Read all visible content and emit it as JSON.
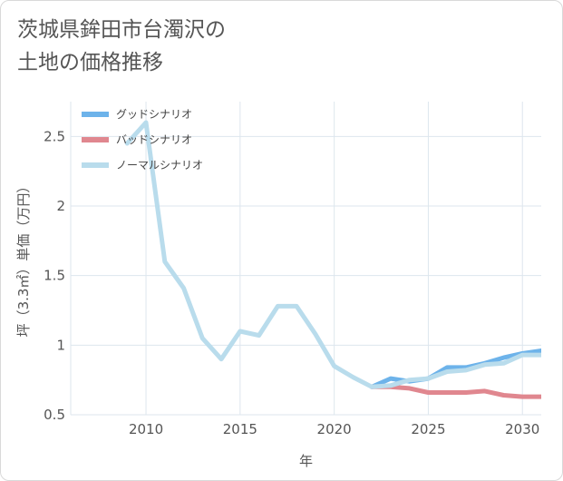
{
  "title_lines": [
    "茨城県鉾田市台濁沢の",
    "土地の価格推移"
  ],
  "chart_data": {
    "type": "line",
    "xlabel": "年",
    "ylabel": "坪（3.3㎡）単価（万円）",
    "xlim": [
      2006,
      2031
    ],
    "ylim": [
      0.5,
      2.75
    ],
    "xticks": [
      2010,
      2015,
      2020,
      2025,
      2030
    ],
    "yticks": [
      0.5,
      1,
      1.5,
      2,
      2.5
    ],
    "ytick_labels": [
      "0.5",
      "1",
      "1.5",
      "2",
      "2.5"
    ],
    "grid": true,
    "legend_position": "top-left",
    "series": [
      {
        "name": "グッドシナリオ",
        "color": "#6db3ea",
        "x": [
          2022,
          2023,
          2024,
          2025,
          2026,
          2027,
          2028,
          2029,
          2030,
          2031
        ],
        "y": [
          0.7,
          0.76,
          0.74,
          0.76,
          0.84,
          0.84,
          0.87,
          0.91,
          0.94,
          0.96
        ]
      },
      {
        "name": "バッドシナリオ",
        "color": "#e0878f",
        "x": [
          2022,
          2023,
          2024,
          2025,
          2026,
          2027,
          2028,
          2029,
          2030,
          2031
        ],
        "y": [
          0.7,
          0.7,
          0.69,
          0.66,
          0.66,
          0.66,
          0.67,
          0.64,
          0.63,
          0.63
        ]
      },
      {
        "name": "ノーマルシナリオ",
        "color": "#b9dcec",
        "x": [
          2009,
          2010,
          2011,
          2012,
          2013,
          2014,
          2015,
          2016,
          2017,
          2018,
          2019,
          2020,
          2021,
          2022,
          2023,
          2024,
          2025,
          2026,
          2027,
          2028,
          2029,
          2030,
          2031
        ],
        "y": [
          2.45,
          2.6,
          1.6,
          1.41,
          1.05,
          0.9,
          1.1,
          1.07,
          1.28,
          1.28,
          1.08,
          0.85,
          0.77,
          0.7,
          0.71,
          0.75,
          0.76,
          0.81,
          0.82,
          0.86,
          0.87,
          0.93,
          0.93
        ]
      }
    ]
  }
}
